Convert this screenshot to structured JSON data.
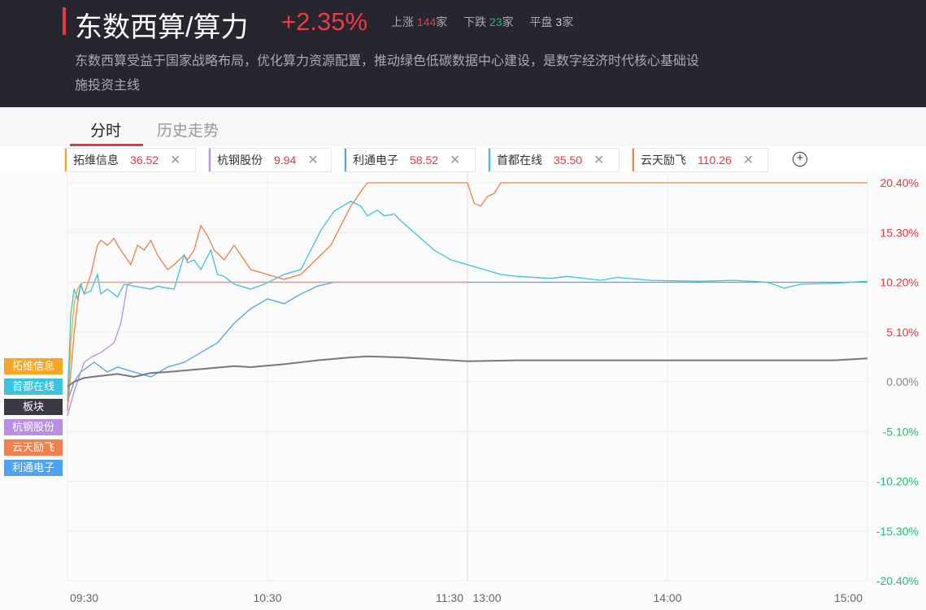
{
  "header": {
    "title": "东数西算/算力",
    "change": "+2.35%",
    "up_label": "上涨",
    "up_count": "144",
    "up_unit": "家",
    "down_label": "下跌",
    "down_count": "23",
    "down_unit": "家",
    "flat_label": "平盘",
    "flat_count": "3",
    "flat_unit": "家",
    "desc": "东数西算受益于国家战略布局，优化算力资源配置，推动绿色低碳数据中心建设，是数字经济时代核心基础设施投资主线"
  },
  "tabs": [
    {
      "label": "分时"
    },
    {
      "label": "历史走势"
    }
  ],
  "stocks": [
    {
      "name": "拓维信息",
      "price": "36.52",
      "color": "#f5a623"
    },
    {
      "name": "杭钢股份",
      "price": "9.94",
      "color": "#b88ee6"
    },
    {
      "name": "利通电子",
      "price": "58.52",
      "color": "#4da3f0"
    },
    {
      "name": "首都在线",
      "price": "35.50",
      "color": "#3cc3dd"
    },
    {
      "name": "云天励飞",
      "price": "110.26",
      "color": "#f0804e"
    }
  ],
  "legend": [
    {
      "label": "拓维信息",
      "color": "#f5a623"
    },
    {
      "label": "首都在线",
      "color": "#3cc3dd"
    },
    {
      "label": "板块",
      "color": "#3a3a46"
    },
    {
      "label": "杭钢股份",
      "color": "#b88ee6"
    },
    {
      "label": "云天励飞",
      "color": "#f0804e"
    },
    {
      "label": "利通电子",
      "color": "#4da3f0"
    }
  ],
  "chart_data": {
    "type": "line",
    "x_ticks": [
      "09:30",
      "10:30",
      "11:30",
      "13:00",
      "14:00",
      "15:00"
    ],
    "y_ticks": [
      "20.40%",
      "15.30%",
      "10.20%",
      "5.10%",
      "0.00%",
      "-5.10%",
      "-10.20%",
      "-15.30%",
      "-20.40%"
    ],
    "ylim": [
      -20.4,
      20.4
    ],
    "up_color": "#e8373e",
    "down_color": "#1fbf70",
    "series": [
      {
        "name": "拓维信息",
        "color": "#f5a623",
        "values": [
          [
            0,
            -3
          ],
          [
            2,
            4
          ],
          [
            4,
            8
          ],
          [
            6,
            9.5
          ],
          [
            8,
            10
          ],
          [
            10,
            10.2
          ],
          [
            240,
            10.2
          ]
        ]
      },
      {
        "name": "首都在线",
        "color": "#3cc3dd",
        "values": [
          [
            0,
            -2
          ],
          [
            2,
            7
          ],
          [
            4,
            9.5
          ],
          [
            6,
            8.5
          ],
          [
            8,
            10
          ],
          [
            10,
            9
          ],
          [
            14,
            9.3
          ],
          [
            18,
            11
          ],
          [
            20,
            9
          ],
          [
            24,
            9.5
          ],
          [
            30,
            8.7
          ],
          [
            34,
            10
          ],
          [
            40,
            9.8
          ],
          [
            50,
            9.5
          ],
          [
            54,
            9.8
          ],
          [
            60,
            9.6
          ],
          [
            64,
            9.5
          ],
          [
            70,
            13
          ],
          [
            72,
            12.2
          ],
          [
            76,
            12.5
          ],
          [
            80,
            11.5
          ],
          [
            86,
            13.5
          ],
          [
            90,
            11
          ],
          [
            94,
            10.8
          ],
          [
            100,
            10
          ],
          [
            110,
            9.5
          ],
          [
            118,
            10
          ],
          [
            124,
            10.5
          ],
          [
            130,
            11
          ],
          [
            140,
            11.5
          ],
          [
            146,
            13.5
          ],
          [
            152,
            15.5
          ],
          [
            160,
            17.5
          ],
          [
            170,
            18.5
          ],
          [
            176,
            18
          ],
          [
            180,
            17
          ],
          [
            186,
            17.6
          ],
          [
            190,
            17
          ],
          [
            196,
            17.2
          ],
          [
            200,
            16.5
          ],
          [
            210,
            15
          ],
          [
            220,
            13.5
          ],
          [
            230,
            12.5
          ],
          [
            240,
            12
          ],
          [
            250,
            11.5
          ],
          [
            260,
            11
          ],
          [
            270,
            10.8
          ],
          [
            290,
            10.6
          ],
          [
            300,
            10.8
          ],
          [
            320,
            10.4
          ],
          [
            330,
            10.7
          ],
          [
            350,
            10.4
          ],
          [
            380,
            10.3
          ],
          [
            400,
            10.4
          ],
          [
            420,
            10.2
          ],
          [
            430,
            9.6
          ],
          [
            440,
            10
          ],
          [
            460,
            10.1
          ],
          [
            480,
            10.3
          ]
        ]
      },
      {
        "name": "板块",
        "color": "#777780",
        "values": [
          [
            0,
            -0.5
          ],
          [
            4,
            0
          ],
          [
            10,
            0.4
          ],
          [
            20,
            0.6
          ],
          [
            30,
            0.8
          ],
          [
            40,
            0.5
          ],
          [
            50,
            0.9
          ],
          [
            60,
            1
          ],
          [
            80,
            1.3
          ],
          [
            100,
            1.6
          ],
          [
            110,
            1.5
          ],
          [
            130,
            1.8
          ],
          [
            150,
            2.2
          ],
          [
            170,
            2.5
          ],
          [
            180,
            2.6
          ],
          [
            200,
            2.5
          ],
          [
            220,
            2.3
          ],
          [
            240,
            2.1
          ],
          [
            270,
            2.2
          ],
          [
            300,
            2.2
          ],
          [
            340,
            2.2
          ],
          [
            380,
            2.2
          ],
          [
            420,
            2.2
          ],
          [
            460,
            2.2
          ],
          [
            480,
            2.4
          ]
        ]
      },
      {
        "name": "杭钢股份",
        "color": "#b88ee6",
        "values": [
          [
            0,
            -3.5
          ],
          [
            4,
            -1
          ],
          [
            8,
            1
          ],
          [
            10,
            2
          ],
          [
            14,
            2.5
          ],
          [
            20,
            3
          ],
          [
            24,
            3.5
          ],
          [
            28,
            4
          ],
          [
            32,
            6
          ],
          [
            36,
            10
          ],
          [
            40,
            10.2
          ],
          [
            240,
            10.2
          ]
        ]
      },
      {
        "name": "云天励飞",
        "color": "#f0804e",
        "values": [
          [
            0,
            -3
          ],
          [
            2,
            1
          ],
          [
            4,
            5
          ],
          [
            6,
            8
          ],
          [
            8,
            10
          ],
          [
            10,
            9
          ],
          [
            14,
            11
          ],
          [
            18,
            14
          ],
          [
            20,
            14.5
          ],
          [
            24,
            14
          ],
          [
            28,
            14.7
          ],
          [
            30,
            14
          ],
          [
            34,
            13
          ],
          [
            38,
            12
          ],
          [
            42,
            14
          ],
          [
            46,
            13.5
          ],
          [
            50,
            14.5
          ],
          [
            54,
            13
          ],
          [
            58,
            12
          ],
          [
            60,
            11.5
          ],
          [
            64,
            12
          ],
          [
            70,
            13
          ],
          [
            72,
            12.5
          ],
          [
            76,
            13.5
          ],
          [
            80,
            16
          ],
          [
            84,
            15
          ],
          [
            88,
            13.5
          ],
          [
            94,
            12.5
          ],
          [
            100,
            14
          ],
          [
            104,
            13
          ],
          [
            110,
            11.5
          ],
          [
            120,
            11
          ],
          [
            130,
            10.5
          ],
          [
            140,
            11
          ],
          [
            146,
            12
          ],
          [
            152,
            13
          ],
          [
            158,
            14
          ],
          [
            164,
            16
          ],
          [
            170,
            18
          ],
          [
            176,
            19.5
          ],
          [
            180,
            20.4
          ],
          [
            240,
            20.4
          ],
          [
            244,
            18.3
          ],
          [
            248,
            18
          ],
          [
            252,
            19
          ],
          [
            256,
            19.3
          ],
          [
            260,
            20.4
          ],
          [
            480,
            20.4
          ]
        ]
      },
      {
        "name": "利通电子",
        "color": "#4da3f0",
        "values": [
          [
            0,
            -2
          ],
          [
            4,
            0
          ],
          [
            8,
            1
          ],
          [
            12,
            1.5
          ],
          [
            16,
            2
          ],
          [
            20,
            1.5
          ],
          [
            24,
            1
          ],
          [
            30,
            1.5
          ],
          [
            40,
            1
          ],
          [
            50,
            0.5
          ],
          [
            60,
            1.5
          ],
          [
            70,
            2
          ],
          [
            80,
            3
          ],
          [
            90,
            4
          ],
          [
            100,
            6
          ],
          [
            110,
            7.5
          ],
          [
            120,
            8.5
          ],
          [
            130,
            8
          ],
          [
            140,
            9
          ],
          [
            150,
            9.8
          ],
          [
            160,
            10.2
          ],
          [
            480,
            10.2
          ]
        ]
      }
    ]
  }
}
